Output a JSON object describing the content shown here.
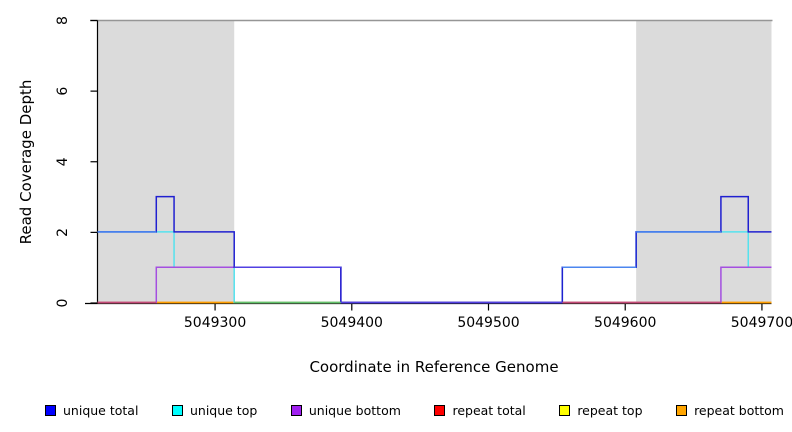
{
  "chart_data": {
    "type": "line",
    "subtype": "step-coverage",
    "title": "",
    "xlabel": "Coordinate in Reference Genome",
    "ylabel": "Read Coverage Depth",
    "xlim": [
      5049214,
      5049707
    ],
    "ylim": [
      0,
      8
    ],
    "x_ticks": [
      5049300,
      5049400,
      5049500,
      5049600,
      5049700
    ],
    "y_ticks": [
      0,
      2,
      4,
      6,
      8
    ],
    "grid": false,
    "top_boundary": {
      "y": 8,
      "color": "#969696"
    },
    "shaded_regions": [
      {
        "x0": 5049214,
        "x1": 5049314,
        "color": "#dbdbdb"
      },
      {
        "x0": 5049608,
        "x1": 5049707,
        "color": "#dbdbdb"
      }
    ],
    "series": [
      {
        "name": "repeat total",
        "color": "#dd3333",
        "points": [
          [
            5049214,
            0
          ],
          [
            5049707,
            0
          ]
        ]
      },
      {
        "name": "repeat top",
        "color": "#f5e642",
        "points": [
          [
            5049214,
            0
          ],
          [
            5049707,
            0
          ]
        ]
      },
      {
        "name": "repeat bottom",
        "color": "#ff9e00",
        "points": [
          [
            5049214,
            0
          ],
          [
            5049707,
            0
          ]
        ]
      },
      {
        "name": "unique top",
        "color": "#55e2ee",
        "points": [
          [
            5049214,
            2
          ],
          [
            5049270,
            2
          ],
          [
            5049270,
            1
          ],
          [
            5049314,
            1
          ],
          [
            5049314,
            0
          ],
          [
            5049554,
            0
          ],
          [
            5049554,
            1
          ],
          [
            5049608,
            1
          ],
          [
            5049608,
            2
          ],
          [
            5049690,
            2
          ],
          [
            5049690,
            1
          ],
          [
            5049707,
            1
          ]
        ]
      },
      {
        "name": "unique bottom",
        "color": "#a44fe0",
        "points": [
          [
            5049214,
            0
          ],
          [
            5049257,
            0
          ],
          [
            5049257,
            1
          ],
          [
            5049392,
            1
          ],
          [
            5049392,
            0
          ],
          [
            5049670,
            0
          ],
          [
            5049670,
            1
          ],
          [
            5049707,
            1
          ]
        ]
      },
      {
        "name": "unique total",
        "color": "#2020d0",
        "points": [
          [
            5049214,
            2
          ],
          [
            5049257,
            2
          ],
          [
            5049257,
            3
          ],
          [
            5049270,
            3
          ],
          [
            5049270,
            2
          ],
          [
            5049314,
            2
          ],
          [
            5049314,
            1
          ],
          [
            5049392,
            1
          ],
          [
            5049392,
            0
          ],
          [
            5049554,
            0
          ],
          [
            5049554,
            1
          ],
          [
            5049608,
            1
          ],
          [
            5049608,
            2
          ],
          [
            5049670,
            2
          ],
          [
            5049670,
            3
          ],
          [
            5049690,
            3
          ],
          [
            5049690,
            2
          ],
          [
            5049707,
            2
          ]
        ]
      }
    ],
    "overlay_segments": [
      {
        "y": 2,
        "x0": 5049214,
        "x1": 5049257,
        "color": "#4b86ef",
        "meaning": "unique total over unique top"
      },
      {
        "y": 1,
        "x0": 5049554,
        "x1": 5049608,
        "color": "#4b86ef",
        "meaning": "unique total over unique top"
      },
      {
        "y": 2,
        "x0": 5049608,
        "x1": 5049670,
        "color": "#4b86ef",
        "meaning": "unique total over unique top"
      },
      {
        "y": 1,
        "x0": 5049314,
        "x1": 5049392,
        "color": "#5240e2",
        "meaning": "unique total over unique bottom"
      },
      {
        "y": 0,
        "x0": 5049392,
        "x1": 5049554,
        "color": "#5240e2",
        "meaning": "unique total over unique bottom"
      },
      {
        "y": 0,
        "x0": 5049214,
        "x1": 5049257,
        "color": "#c34a78",
        "meaning": "repeat total over unique bottom"
      },
      {
        "y": 0,
        "x0": 5049554,
        "x1": 5049670,
        "color": "#c34a78",
        "meaning": "repeat total over unique bottom"
      },
      {
        "y": 0,
        "x0": 5049314,
        "x1": 5049392,
        "color": "#63c36c",
        "meaning": "repeat top over unique top"
      }
    ],
    "legend": {
      "position": "bottom",
      "items": [
        {
          "label": "unique total",
          "color": "#0000ff"
        },
        {
          "label": "unique top",
          "color": "#00ffff"
        },
        {
          "label": "unique bottom",
          "color": "#a020f0"
        },
        {
          "label": "repeat total",
          "color": "#ff0000"
        },
        {
          "label": "repeat top",
          "color": "#ffff00"
        },
        {
          "label": "repeat bottom",
          "color": "#ffa500"
        }
      ]
    }
  }
}
